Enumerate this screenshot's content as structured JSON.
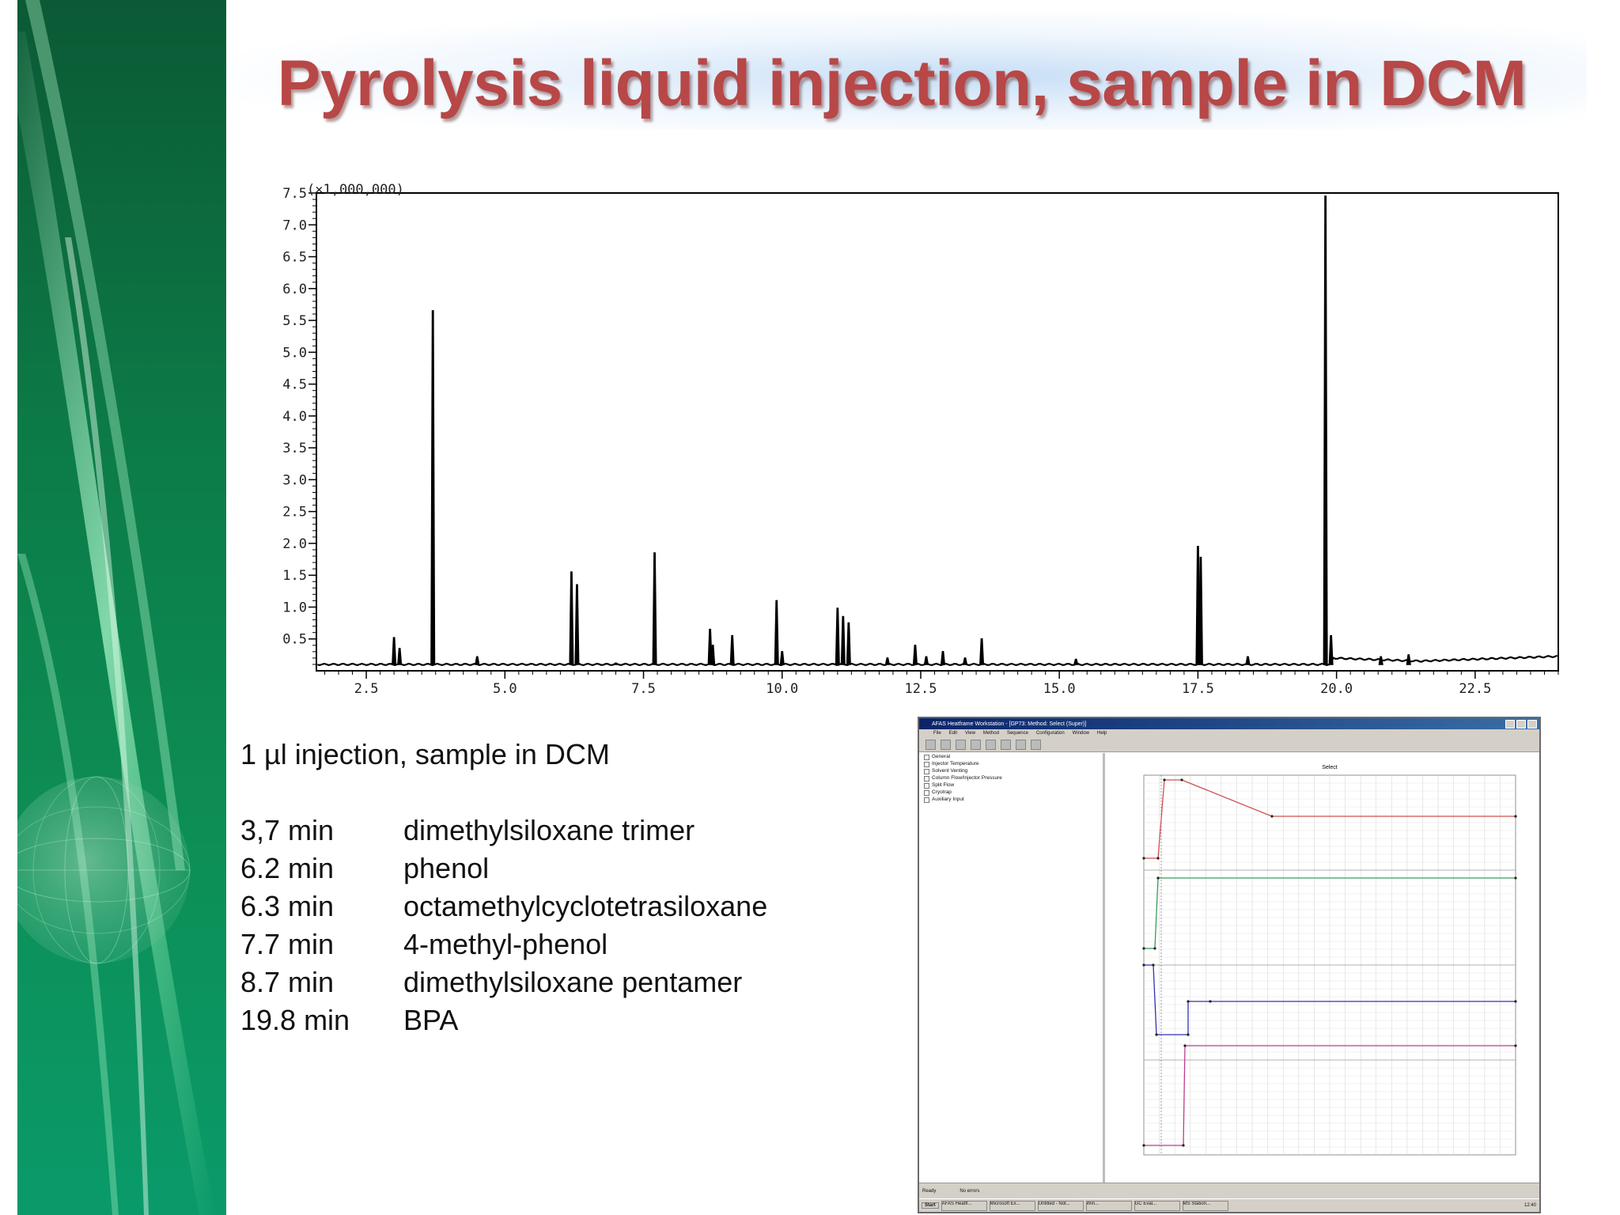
{
  "slide": {
    "title": "Pyrolysis liquid injection, sample in DCM"
  },
  "chart_data": {
    "type": "line",
    "title": "",
    "xlabel": "",
    "ylabel": "",
    "y_multiplier_label": "(×1,000,000)",
    "xlim": [
      1.6,
      24.0
    ],
    "ylim": [
      0,
      7.5
    ],
    "x_ticks": [
      "2.5",
      "5.0",
      "7.5",
      "10.0",
      "12.5",
      "15.0",
      "17.5",
      "20.0",
      "22.5"
    ],
    "y_ticks": [
      "0.5",
      "1.0",
      "1.5",
      "2.0",
      "2.5",
      "3.0",
      "3.5",
      "4.0",
      "4.5",
      "5.0",
      "5.5",
      "6.0",
      "6.5",
      "7.0",
      "7.5"
    ],
    "grid": false,
    "baseline": 0.1,
    "peaks": [
      {
        "x": 3.0,
        "y": 0.52
      },
      {
        "x": 3.1,
        "y": 0.35
      },
      {
        "x": 3.7,
        "y": 5.65
      },
      {
        "x": 4.5,
        "y": 0.22
      },
      {
        "x": 6.2,
        "y": 1.55
      },
      {
        "x": 6.3,
        "y": 1.35
      },
      {
        "x": 7.0,
        "y": 0.12
      },
      {
        "x": 7.7,
        "y": 1.85
      },
      {
        "x": 8.7,
        "y": 0.65
      },
      {
        "x": 8.75,
        "y": 0.4
      },
      {
        "x": 9.1,
        "y": 0.55
      },
      {
        "x": 9.9,
        "y": 1.1
      },
      {
        "x": 10.0,
        "y": 0.3
      },
      {
        "x": 11.0,
        "y": 0.98
      },
      {
        "x": 11.1,
        "y": 0.85
      },
      {
        "x": 11.2,
        "y": 0.75
      },
      {
        "x": 11.9,
        "y": 0.2
      },
      {
        "x": 12.4,
        "y": 0.4
      },
      {
        "x": 12.6,
        "y": 0.22
      },
      {
        "x": 12.9,
        "y": 0.3
      },
      {
        "x": 13.3,
        "y": 0.2
      },
      {
        "x": 13.6,
        "y": 0.5
      },
      {
        "x": 15.3,
        "y": 0.18
      },
      {
        "x": 17.5,
        "y": 1.95
      },
      {
        "x": 17.55,
        "y": 1.78
      },
      {
        "x": 18.4,
        "y": 0.22
      },
      {
        "x": 19.8,
        "y": 7.45
      },
      {
        "x": 19.9,
        "y": 0.55
      },
      {
        "x": 20.8,
        "y": 0.22
      },
      {
        "x": 21.3,
        "y": 0.25
      }
    ]
  },
  "info": {
    "injection_note": "1 µl injection, sample in DCM",
    "peaks": [
      {
        "time": "3,7 min",
        "compound": "dimethylsiloxane trimer"
      },
      {
        "time": "6.2 min",
        "compound": "phenol"
      },
      {
        "time": "6.3 min",
        "compound": "octamethylcyclotetrasiloxane"
      },
      {
        "time": "7.7 min",
        "compound": "4-methyl-phenol"
      },
      {
        "time": "8.7 min",
        "compound": "dimethylsiloxane pentamer"
      },
      {
        "time": "19.8 min",
        "compound": "BPA"
      }
    ]
  },
  "software": {
    "window_title": "AFAS Heatframe Workstation - [GP73: Method: Select (Super)]",
    "menu": [
      "File",
      "Edit",
      "View",
      "Method",
      "Sequence",
      "Configuration",
      "Window",
      "Help"
    ],
    "tree_items": [
      "General",
      "Injector Temperature",
      "Solvent Venting",
      "Column Flow/Injector Pressure",
      "Split Flow",
      "Cryotrap",
      "Auxiliary Input"
    ],
    "plot_title": "Select",
    "status_left": "Ready",
    "status_mid": "No errors",
    "taskbar_start": "Start",
    "taskbar_tasks": [
      "AFAS Heatfr...",
      "Microsoft Ex...",
      "Untitled - Not...",
      "Win...",
      "GC Eval...",
      "MS Station..."
    ],
    "clock": "12:40",
    "line_colors": {
      "temperature": "#d05050",
      "column_flow": "#3a9a5a",
      "split_flow": "#3030b0",
      "cryo": "#c03a90"
    }
  }
}
